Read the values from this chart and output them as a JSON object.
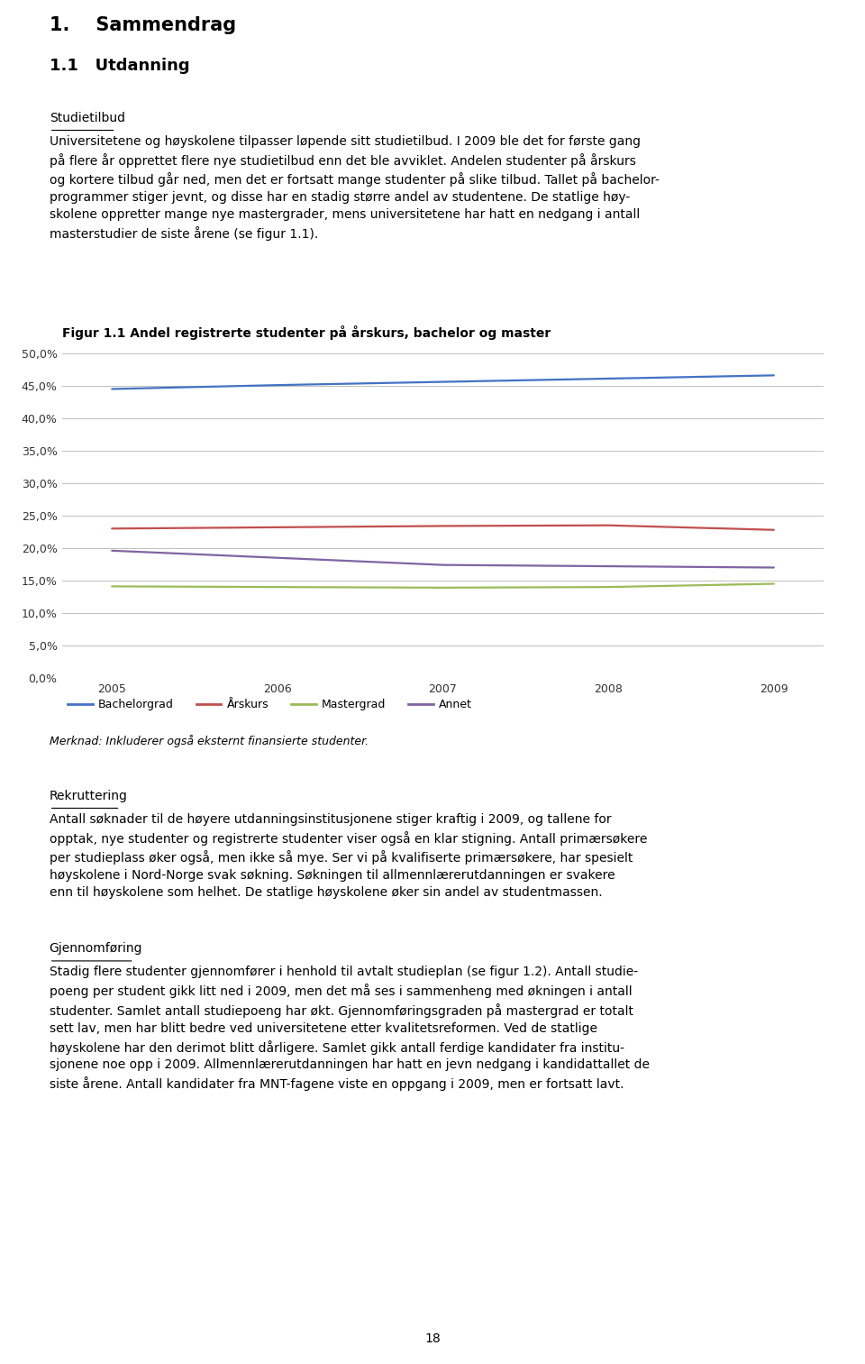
{
  "title": "Figur 1.1 Andel registrerte studenter på årskurs, bachelor og master",
  "years": [
    2005,
    2006,
    2007,
    2008,
    2009
  ],
  "series": [
    {
      "label": "Bachelorgrad",
      "color": "#4472C4",
      "values": [
        0.445,
        0.451,
        0.456,
        0.461,
        0.466
      ]
    },
    {
      "label": "Årskurs",
      "color": "#C0504D",
      "values": [
        0.23,
        0.232,
        0.234,
        0.235,
        0.228
      ]
    },
    {
      "label": "Mastergrad",
      "color": "#9BBB59",
      "values": [
        0.141,
        0.14,
        0.139,
        0.14,
        0.145
      ]
    },
    {
      "label": "Annet",
      "color": "#8064A2",
      "values": [
        0.196,
        0.185,
        0.174,
        0.172,
        0.17
      ]
    }
  ],
  "ylim": [
    0.0,
    0.5
  ],
  "yticks": [
    0.0,
    0.05,
    0.1,
    0.15,
    0.2,
    0.25,
    0.3,
    0.35,
    0.4,
    0.45,
    0.5
  ],
  "ytick_labels": [
    "0,0%",
    "5,0%",
    "10,0%",
    "15,0%",
    "20,0%",
    "25,0%",
    "30,0%",
    "35,0%",
    "40,0%",
    "45,0%",
    "50,0%"
  ],
  "background_color": "#FFFFFF",
  "grid_color": "#BFBFBF",
  "figsize": [
    9.6,
    15.13
  ],
  "dpi": 100,
  "heading1": "1. Sammendrag",
  "heading2": "1.1 Utdanning",
  "studietilbud_heading": "Studietilbud",
  "studietilbud_body": "Universitetene og høyskolene tilpasser løpende sitt studietilbud. I 2009 ble det for første gang på flere år opprettet flere nye studietilbud enn det ble avviklet. Andelen studenter på årskurs og kortere tilbud går ned, men det er fortsatt mange studenter på slike tilbud. Tallet på bachelorprogrammer stiger jevnt, og disse har en stadig større andel av studentene. De statlige høyskolene oppretter mange nye mastergrader, mens universitetene har hatt en nedgang i antall masterstudier de siste årene (se figur 1.1).",
  "merknad": "Merknad: Inkluderer også eksternt finansierte studenter.",
  "rekruttering_heading": "Rekruttering",
  "rekruttering_body": "Antall søknader til de høyere utdanningsinstitusjonene stiger kraftig i 2009, og tallene for opptak, nye studenter og registrerte studenter viser også en klar stigning. Antall primærsøkere per studieplass øker også, men ikke så mye. Ser vi på kvalifiserte primærsøkere, har spesielt høyskolene i Nord-Norge svak søkning. Søkningen til allmennlærerutdanningen er svakere enn til høyskolene som helhet. De statlige høyskolene øker sin andel av studentmassen.",
  "gjennomforing_heading": "Gjennomføring",
  "gjennomforing_body": "Stadig flere studenter gjennomfører i henhold til avtalt studieplan (se figur 1.2). Antall studiepoeng per student gikk litt ned i 2009, men det må ses i sammenheng med økningen i antall studenter. Samlet antall studiepoeng har økt. Gjennomføringsgraden på mastergrad er totalt sett lav, men har blitt bedre ved universitetene etter kvalitetsreformen. Ved de statlige høyskolene har den derimot blitt dårligere. Samlet gikk antall ferdige kandidater fra institusjonene noe opp i 2009. Allmennlærerutdanningen har hatt en jevn nedgang i kandidattallet de siste årene. Antall kandidater fra MNT-fagene viste en oppgang i 2009, men er fortsatt lavt.",
  "page_number": "18"
}
